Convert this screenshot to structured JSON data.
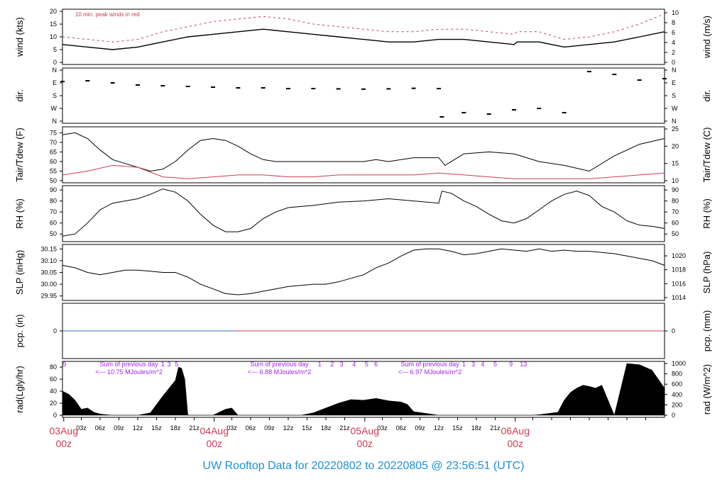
{
  "footer_title": "UW Rooftop Data for 20220802  to  20220805 @ 23:56:51  (UTC)",
  "colors": {
    "red": "#cd3b54",
    "blue": "#2f6ccf",
    "purple": "#a020f0",
    "black": "#000000",
    "footer": "#1e90d6"
  },
  "chart_data": [
    {
      "id": "wind",
      "type": "line",
      "ylabel": "wind (kts)",
      "ylabel_right": "wind (m/s)",
      "annotation": "10 min. peak winds in red",
      "ylim": [
        0,
        20
      ],
      "yticks": [
        0,
        5,
        10,
        15,
        20
      ],
      "yticks_right": [
        0,
        2,
        4,
        6,
        8,
        10
      ],
      "series": [
        {
          "color": "#000000",
          "x": [
            0,
            4,
            8,
            12,
            16,
            20,
            24,
            28,
            32,
            36,
            40,
            44,
            48,
            52,
            56,
            60,
            64,
            68,
            72,
            72.5,
            76,
            80,
            84,
            88,
            92,
            96
          ],
          "y": [
            7,
            6,
            5,
            6,
            8,
            10,
            11,
            12,
            13,
            12,
            11,
            10,
            9,
            8,
            8,
            9,
            9,
            8,
            7,
            8,
            8,
            6,
            7,
            8,
            10,
            12
          ]
        },
        {
          "color": "#cd3b54",
          "x": [
            0,
            4,
            8,
            12,
            16,
            20,
            24,
            28,
            32,
            36,
            40,
            44,
            48,
            52,
            56,
            60,
            64,
            68,
            72,
            72.5,
            76,
            80,
            84,
            88,
            92,
            96
          ],
          "y": [
            10,
            9,
            8,
            9,
            12,
            14,
            16,
            17,
            18,
            17,
            15,
            14,
            13,
            12,
            12,
            13,
            13,
            12,
            11,
            12,
            12,
            9,
            10,
            12,
            15,
            19
          ]
        }
      ]
    },
    {
      "id": "dir",
      "type": "scatter",
      "ylabel": "dir.",
      "ylabel_right": "dir.",
      "yticks": [
        "N",
        "W",
        "S",
        "E",
        "N"
      ],
      "yticks_right": [
        "N",
        "W",
        "S",
        "E",
        "N"
      ],
      "series": [
        {
          "color": "#000000",
          "x": [
            0,
            4,
            8,
            12,
            16,
            20,
            24,
            28,
            32,
            36,
            40,
            44,
            48,
            52,
            56,
            60,
            60.5,
            64,
            68,
            72,
            76,
            80,
            84,
            88,
            92,
            96
          ],
          "y": [
            280,
            285,
            270,
            255,
            250,
            245,
            240,
            235,
            235,
            230,
            230,
            228,
            226,
            228,
            232,
            230,
            30,
            60,
            50,
            80,
            90,
            60,
            350,
            330,
            290,
            300
          ]
        }
      ]
    },
    {
      "id": "temp",
      "type": "line",
      "ylabel": "Tair/Tdew (F)",
      "ylabel_right": "Tair/Tdew (C)",
      "ylim": [
        50,
        77
      ],
      "yticks": [
        50,
        55,
        60,
        65,
        70,
        75
      ],
      "yticks_right": [
        10,
        15,
        20,
        25
      ],
      "series": [
        {
          "color": "#000000",
          "x": [
            0,
            2,
            4,
            6,
            8,
            10,
            12,
            14,
            16,
            18,
            20,
            22,
            24,
            26,
            28,
            30,
            32,
            34,
            36,
            40,
            44,
            48,
            50,
            52,
            54,
            56,
            60,
            61,
            64,
            68,
            72,
            76,
            80,
            84,
            88,
            92,
            96
          ],
          "y": [
            74,
            75,
            72,
            66,
            61,
            59,
            57,
            55,
            56,
            60,
            66,
            71,
            72,
            71,
            68,
            64,
            61,
            60,
            60,
            60,
            60,
            60,
            61,
            60,
            61,
            62,
            62,
            58,
            64,
            65,
            64,
            60,
            58,
            55,
            63,
            69,
            72
          ]
        },
        {
          "color": "#cd3b54",
          "x": [
            0,
            4,
            8,
            12,
            16,
            20,
            24,
            28,
            32,
            36,
            40,
            44,
            48,
            52,
            56,
            60,
            64,
            68,
            72,
            76,
            80,
            84,
            88,
            92,
            96
          ],
          "y": [
            53,
            55,
            58,
            57,
            52,
            51,
            52,
            53,
            53,
            52,
            52,
            53,
            53,
            53,
            53,
            54,
            53,
            52,
            51,
            51,
            51,
            51,
            52,
            53,
            54
          ]
        }
      ]
    },
    {
      "id": "rh",
      "type": "line",
      "ylabel": "RH (%)",
      "ylabel_right": "RH (%)",
      "ylim": [
        45,
        92
      ],
      "yticks": [
        50,
        60,
        70,
        80,
        90
      ],
      "yticks_right": [
        50,
        60,
        70,
        80,
        90
      ],
      "series": [
        {
          "color": "#000000",
          "x": [
            0,
            2,
            4,
            6,
            8,
            10,
            12,
            14,
            16,
            18,
            20,
            22,
            24,
            26,
            28,
            30,
            32,
            34,
            36,
            40,
            44,
            48,
            52,
            56,
            60,
            60.5,
            62,
            64,
            66,
            68,
            70,
            72,
            74,
            76,
            78,
            80,
            82,
            84,
            86,
            88,
            90,
            92,
            94,
            96
          ],
          "y": [
            48,
            50,
            60,
            72,
            78,
            80,
            82,
            86,
            91,
            88,
            80,
            68,
            58,
            52,
            52,
            55,
            64,
            70,
            74,
            76,
            79,
            80,
            82,
            80,
            78,
            89,
            87,
            80,
            75,
            68,
            62,
            60,
            64,
            72,
            80,
            86,
            89,
            85,
            75,
            70,
            62,
            58,
            57,
            55
          ]
        }
      ]
    },
    {
      "id": "slp",
      "type": "line",
      "ylabel": "SLP (inHg)",
      "ylabel_right": "SLP (hPa)",
      "ylim": [
        29.94,
        30.16
      ],
      "yticks": [
        29.95,
        30.0,
        30.05,
        30.1,
        30.15
      ],
      "yticks_right": [
        1014,
        1016,
        1018,
        1020
      ],
      "series": [
        {
          "color": "#000000",
          "x": [
            0,
            2,
            4,
            6,
            8,
            10,
            12,
            14,
            16,
            18,
            20,
            22,
            24,
            26,
            28,
            30,
            32,
            34,
            36,
            40,
            42,
            44,
            48,
            50,
            52,
            54,
            56,
            58,
            60,
            62,
            64,
            66,
            68,
            70,
            72,
            74,
            76,
            78,
            80,
            82,
            84,
            86,
            88,
            90,
            92,
            94,
            96
          ],
          "y": [
            30.08,
            30.07,
            30.05,
            30.04,
            30.05,
            30.06,
            30.06,
            30.055,
            30.05,
            30.05,
            30.03,
            30.0,
            29.98,
            29.96,
            29.955,
            29.96,
            29.97,
            29.98,
            29.99,
            30.0,
            30.0,
            30.01,
            30.04,
            30.07,
            30.09,
            30.12,
            30.145,
            30.15,
            30.15,
            30.14,
            30.125,
            30.13,
            30.14,
            30.15,
            30.145,
            30.14,
            30.15,
            30.14,
            30.145,
            30.14,
            30.14,
            30.135,
            30.13,
            30.12,
            30.11,
            30.1,
            30.08
          ]
        }
      ]
    },
    {
      "id": "pcp",
      "type": "line",
      "ylabel": "pcp. (in)",
      "ylabel_right": "pcp. (mm)",
      "ylim": [
        -1,
        1
      ],
      "yticks": [
        0
      ],
      "yticks_right": [
        0
      ],
      "series": [
        {
          "color": "#2f6ccf",
          "x": [
            0,
            27.5
          ],
          "y": [
            0,
            0
          ]
        },
        {
          "color": "#cd3b54",
          "x": [
            27.5,
            96
          ],
          "y": [
            0,
            0
          ]
        }
      ]
    },
    {
      "id": "rad",
      "type": "area",
      "ylabel": "rad(Lgly/hr)",
      "ylabel_right": "rad (W/m^2)",
      "ylim": [
        0,
        86
      ],
      "yticks": [
        0,
        20,
        40,
        60,
        80
      ],
      "yticks_right": [
        0,
        200,
        400,
        600,
        800,
        1000
      ],
      "x": [
        0,
        1,
        2,
        3,
        4,
        5,
        6,
        7,
        8,
        12,
        14,
        15,
        16,
        17,
        18,
        18.5,
        19,
        19.5,
        20,
        24,
        26,
        27,
        28,
        30,
        36,
        38,
        40,
        42,
        44,
        46,
        48,
        50,
        52,
        54,
        55,
        56,
        60,
        66,
        68,
        70,
        72,
        74,
        75,
        76,
        79,
        80,
        81,
        82,
        83,
        84,
        85,
        86,
        88,
        90,
        92,
        94,
        96
      ],
      "y": [
        40,
        35,
        25,
        10,
        12,
        5,
        2,
        1,
        0,
        0,
        4,
        18,
        32,
        45,
        58,
        80,
        78,
        60,
        0,
        0,
        10,
        12,
        0,
        0,
        0,
        0,
        4,
        12,
        20,
        26,
        25,
        28,
        24,
        22,
        18,
        6,
        0,
        0,
        0,
        0,
        0,
        0,
        0,
        1,
        5,
        25,
        38,
        45,
        50,
        48,
        45,
        50,
        0,
        86,
        84,
        75,
        45
      ],
      "purple_numbers_row1": [
        "9",
        "1",
        "3",
        "5",
        "1",
        "2",
        "3",
        "4",
        "5",
        "6",
        "1",
        "3",
        "4",
        "5",
        "9",
        "13"
      ],
      "sums": [
        {
          "title": "Sum of previous day",
          "value": "<--- 10.75 MJoules/m^2"
        },
        {
          "title": "Sum of previous day",
          "value": "<--- 6.88 MJoules/m^2"
        },
        {
          "title": "Sum of previous day",
          "value": "<--- 6.97 MJoules/m^2"
        }
      ]
    }
  ],
  "x_axis": {
    "range_hours": [
      0,
      96
    ],
    "hour_labels": [
      "03z",
      "06z",
      "09z",
      "12z",
      "15z",
      "18z",
      "21z",
      "03z",
      "06z",
      "09z",
      "12z",
      "15z",
      "18z",
      "21z",
      "03z",
      "06z",
      "09z",
      "12z",
      "15z",
      "18z",
      "21z"
    ],
    "day_labels": [
      {
        "date": "03Aug",
        "time": "00z"
      },
      {
        "date": "04Aug",
        "time": "00z"
      },
      {
        "date": "05Aug",
        "time": "00z"
      },
      {
        "date": "06Aug",
        "time": "00z"
      }
    ]
  }
}
